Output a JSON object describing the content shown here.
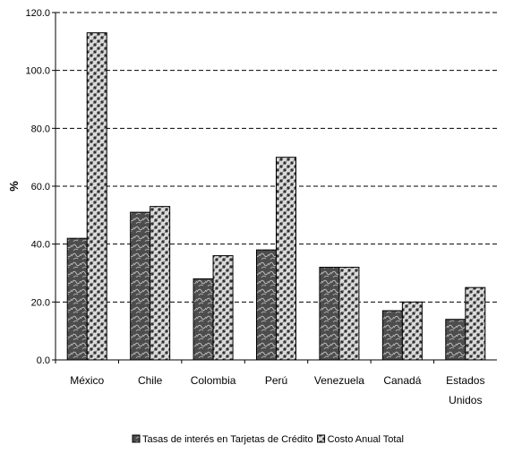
{
  "chart_data": {
    "type": "bar",
    "ylabel": "%",
    "xlabel": "",
    "ylim": [
      0,
      120
    ],
    "y_ticks": [
      "0.0",
      "20.0",
      "40.0",
      "60.0",
      "80.0",
      "100.0",
      "120.0"
    ],
    "y_tick_values": [
      0,
      20,
      40,
      60,
      80,
      100,
      120
    ],
    "grid": true,
    "legend_position": "bottom",
    "categories": [
      [
        "México"
      ],
      [
        "Chile"
      ],
      [
        "Colombia"
      ],
      [
        "Perú"
      ],
      [
        "Venezuela"
      ],
      [
        "Canadá"
      ],
      [
        "Estados",
        "Unidos"
      ]
    ],
    "series": [
      {
        "name": "Tasas de interés en Tarjetas de Crédito",
        "values": [
          42,
          51,
          28,
          38,
          32,
          17,
          14
        ],
        "color": "#4d4d4d"
      },
      {
        "name": "Costo Anual Total",
        "values": [
          113,
          53,
          36,
          70,
          32,
          20,
          25
        ],
        "color": "#c8c8c8"
      }
    ]
  }
}
